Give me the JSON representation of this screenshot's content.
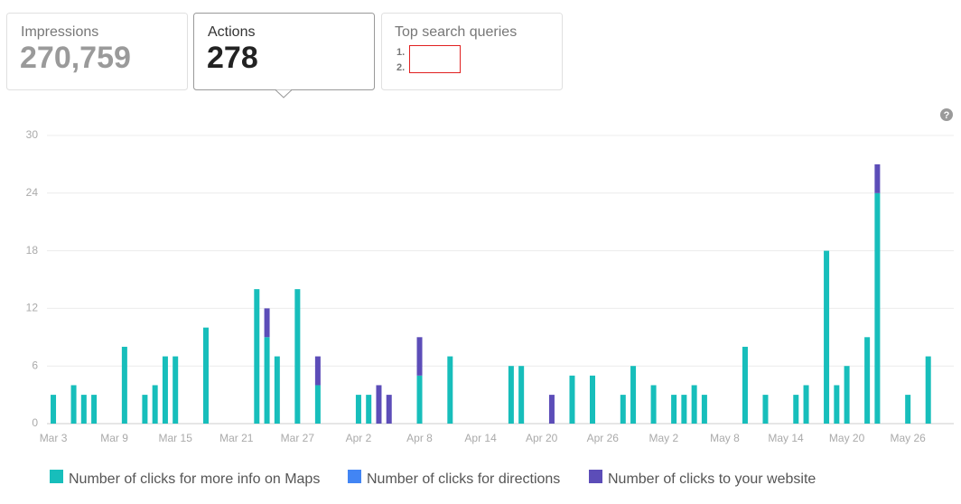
{
  "cards": [
    {
      "label": "Impressions",
      "value": "270,759"
    },
    {
      "label": "Actions",
      "value": "278"
    },
    {
      "label": "Top search queries",
      "items": [
        "1.",
        "2."
      ]
    }
  ],
  "help_icon": "?",
  "chart_data": {
    "type": "stacked_bar",
    "categories": [
      "Mar 3",
      null,
      null,
      null,
      null,
      null,
      "Mar 9",
      null,
      null,
      null,
      null,
      null,
      "Mar 15",
      null,
      null,
      null,
      null,
      null,
      "Mar 21",
      null,
      null,
      null,
      null,
      null,
      "Mar 27",
      null,
      null,
      null,
      null,
      null,
      "Apr 2",
      null,
      null,
      null,
      null,
      null,
      "Apr 8",
      null,
      null,
      null,
      null,
      null,
      "Apr 14",
      null,
      null,
      null,
      null,
      null,
      "Apr 20",
      null,
      null,
      null,
      null,
      null,
      "Apr 26",
      null,
      null,
      null,
      null,
      null,
      "May 2",
      null,
      null,
      null,
      null,
      null,
      "May 8",
      null,
      null,
      null,
      null,
      null,
      "May 14",
      null,
      null,
      null,
      null,
      null,
      "May 20",
      null,
      null,
      null,
      null,
      null,
      "May 26",
      null,
      null,
      null
    ],
    "series": [
      {
        "name": "Number of clicks for more info on Maps",
        "color": "#17bebb",
        "values": [
          3,
          null,
          4,
          3,
          3,
          null,
          null,
          8,
          null,
          3,
          4,
          7,
          7,
          null,
          null,
          10,
          null,
          null,
          null,
          null,
          14,
          9,
          7,
          null,
          14,
          null,
          4,
          null,
          null,
          null,
          3,
          3,
          null,
          null,
          null,
          null,
          5,
          null,
          null,
          7,
          null,
          null,
          null,
          null,
          null,
          6,
          6,
          null,
          null,
          null,
          null,
          5,
          null,
          5,
          null,
          null,
          3,
          6,
          null,
          4,
          null,
          3,
          3,
          4,
          3,
          null,
          null,
          null,
          8,
          null,
          3,
          null,
          null,
          3,
          4,
          null,
          18,
          4,
          6,
          null,
          9,
          24,
          null,
          null,
          3,
          null,
          7,
          null
        ]
      },
      {
        "name": "Number of clicks for directions",
        "color": "#4285f4",
        "values": [
          null,
          null,
          null,
          null,
          null,
          null,
          null,
          null,
          null,
          null,
          null,
          null,
          null,
          null,
          null,
          null,
          null,
          null,
          null,
          null,
          null,
          null,
          null,
          null,
          null,
          null,
          null,
          null,
          null,
          null,
          null,
          null,
          null,
          null,
          null,
          null,
          null,
          null,
          null,
          null,
          null,
          null,
          null,
          null,
          null,
          null,
          null,
          null,
          null,
          null,
          null,
          null,
          null,
          null,
          null,
          null,
          null,
          null,
          null,
          null,
          null,
          null,
          null,
          null,
          null,
          null,
          null,
          null,
          null,
          null,
          null,
          null,
          null,
          null,
          null,
          null,
          null,
          null,
          null,
          null,
          null,
          null,
          null,
          null,
          null,
          null,
          null,
          null
        ]
      },
      {
        "name": "Number of clicks to your website",
        "color": "#5c4db8",
        "values": [
          null,
          null,
          null,
          null,
          null,
          null,
          null,
          null,
          null,
          null,
          null,
          null,
          null,
          null,
          null,
          null,
          null,
          null,
          null,
          null,
          null,
          3,
          null,
          null,
          null,
          null,
          3,
          null,
          null,
          null,
          null,
          null,
          4,
          3,
          null,
          null,
          4,
          null,
          null,
          null,
          null,
          null,
          null,
          null,
          null,
          null,
          null,
          null,
          null,
          3,
          null,
          null,
          null,
          null,
          null,
          null,
          null,
          null,
          null,
          null,
          null,
          null,
          null,
          null,
          null,
          null,
          null,
          null,
          null,
          null,
          null,
          null,
          null,
          null,
          null,
          null,
          null,
          null,
          null,
          null,
          null,
          3,
          null,
          null,
          null,
          null,
          null,
          null
        ]
      }
    ],
    "ylim": [
      0,
      30
    ],
    "yticks": [
      0,
      6,
      12,
      18,
      24,
      30
    ],
    "grid": true
  }
}
